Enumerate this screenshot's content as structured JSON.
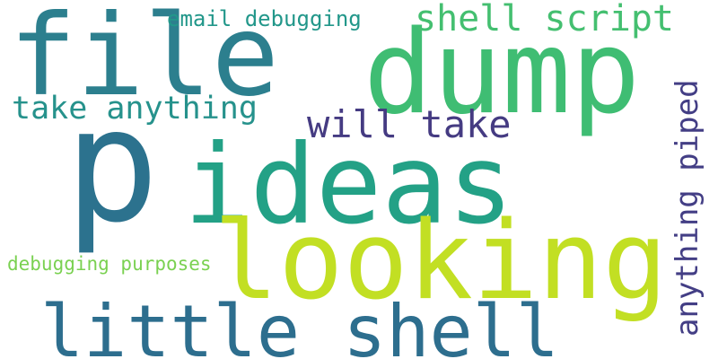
{
  "cloud": {
    "words": [
      {
        "text": "file",
        "color": "#2c7f8e"
      },
      {
        "text": "dump",
        "color": "#3fbd73"
      },
      {
        "text": "p",
        "color": "#2c728e"
      },
      {
        "text": "ideas",
        "color": "#23a186"
      },
      {
        "text": "looking",
        "color": "#c2df23"
      },
      {
        "text": "little shell",
        "color": "#2d6e8e"
      },
      {
        "text": "shell script",
        "color": "#44bf70"
      },
      {
        "text": "will take",
        "color": "#453b82"
      },
      {
        "text": "take anything",
        "color": "#26928c"
      },
      {
        "text": "email debugging",
        "color": "#22978a"
      },
      {
        "text": "anything piped",
        "color": "#433e85"
      },
      {
        "text": "debugging purposes",
        "color": "#7ad151"
      }
    ]
  }
}
